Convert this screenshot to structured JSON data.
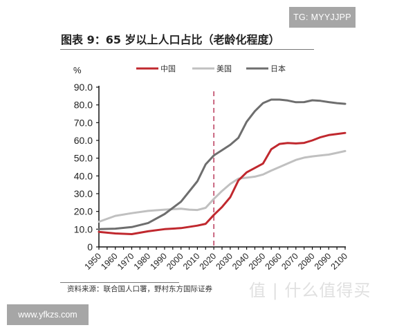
{
  "watermarks": {
    "top_right": "TG: MYYJJPP",
    "bottom_left": "www.yfkzs.com",
    "logo": "值 | 什么值得买"
  },
  "header": {
    "title": "图表 9：65 岁以上人口占比（老龄化程度）"
  },
  "footer": {
    "source": "资料来源：联合国人口署，野村东方国际证券"
  },
  "chart_data": {
    "type": "line",
    "title": "图表 9：65 岁以上人口占比（老龄化程度）",
    "xlabel": "",
    "ylabel": "%",
    "ylim": [
      0,
      90
    ],
    "xlim": [
      1950,
      2100
    ],
    "yticks": [
      "0",
      "10.0",
      "20.0",
      "30.0",
      "40.0",
      "50.0",
      "60.0",
      "70.0",
      "80.0",
      "90.0"
    ],
    "xticks": [
      "1950",
      "1960",
      "1970",
      "1980",
      "1990",
      "2000",
      "2010",
      "2020",
      "2030",
      "2040",
      "2050",
      "2060",
      "2070",
      "2080",
      "2090",
      "2100"
    ],
    "grid": false,
    "legend_position": "top",
    "annotations": [
      {
        "type": "vertical-dashed-line",
        "x": 2020,
        "color": "#c9667f"
      }
    ],
    "series": [
      {
        "name": "中国",
        "color": "#c0282e",
        "x": [
          1950,
          1960,
          1970,
          1980,
          1990,
          2000,
          2010,
          2015,
          2020,
          2025,
          2030,
          2035,
          2040,
          2045,
          2050,
          2055,
          2060,
          2065,
          2070,
          2075,
          2080,
          2085,
          2090,
          2095,
          2100
        ],
        "values": [
          8.5,
          7.6,
          7.2,
          8.8,
          10.0,
          10.6,
          12.0,
          13.0,
          18.0,
          22.5,
          28.0,
          37.5,
          42.0,
          44.5,
          47.0,
          55.0,
          58.0,
          58.5,
          58.3,
          58.6,
          60.0,
          61.8,
          63.0,
          63.6,
          64.2
        ]
      },
      {
        "name": "美国",
        "color": "#c0c0c0",
        "x": [
          1950,
          1960,
          1970,
          1980,
          1990,
          2000,
          2005,
          2010,
          2015,
          2020,
          2025,
          2030,
          2035,
          2040,
          2045,
          2050,
          2055,
          2060,
          2065,
          2070,
          2075,
          2080,
          2085,
          2090,
          2095,
          2100
        ],
        "values": [
          14.2,
          17.5,
          19.0,
          20.3,
          21.0,
          21.5,
          21.0,
          20.8,
          22.0,
          27.0,
          31.5,
          35.5,
          38.5,
          39.0,
          39.6,
          40.8,
          43.0,
          45.0,
          47.0,
          49.0,
          50.3,
          51.0,
          51.5,
          52.0,
          53.0,
          54.0
        ]
      },
      {
        "name": "日本",
        "color": "#6e6e6e",
        "x": [
          1950,
          1960,
          1970,
          1980,
          1990,
          2000,
          2010,
          2015,
          2020,
          2025,
          2030,
          2035,
          2040,
          2045,
          2050,
          2055,
          2060,
          2065,
          2070,
          2075,
          2080,
          2085,
          2090,
          2095,
          2100
        ],
        "values": [
          10.0,
          10.3,
          11.2,
          13.5,
          18.5,
          25.5,
          37.0,
          46.5,
          51.5,
          54.5,
          57.5,
          61.5,
          70.5,
          76.5,
          81.0,
          83.0,
          83.0,
          82.5,
          81.5,
          81.6,
          82.6,
          82.3,
          81.6,
          81.0,
          80.6
        ]
      }
    ]
  }
}
